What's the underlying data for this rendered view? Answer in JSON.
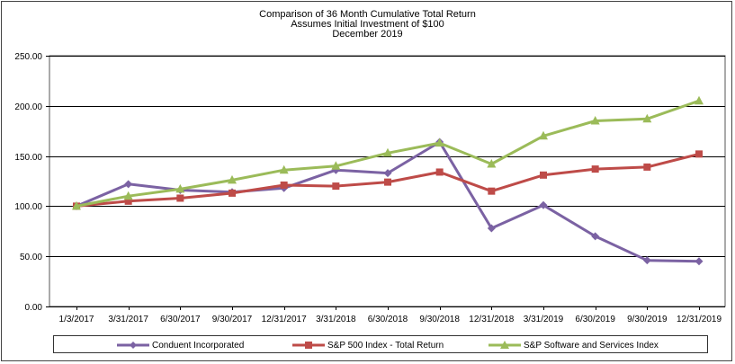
{
  "chart_data": {
    "type": "line",
    "title": "Comparison of 36 Month Cumulative Total Return",
    "subtitle": "Assumes Initial Investment of $100",
    "subtitle2": "December 2019",
    "xlabel": "",
    "ylabel": "",
    "ylim": [
      0,
      250
    ],
    "yticks": [
      "0.00",
      "50.00",
      "100.00",
      "150.00",
      "200.00",
      "250.00"
    ],
    "ytick_values": [
      0,
      50,
      100,
      150,
      200,
      250
    ],
    "grid": true,
    "legend_position": "bottom",
    "categories": [
      "1/3/2017",
      "3/31/2017",
      "6/30/2017",
      "9/30/2017",
      "12/31/2017",
      "3/31/2018",
      "6/30/2018",
      "9/30/2018",
      "12/31/2018",
      "3/31/2019",
      "6/30/2019",
      "9/30/2019",
      "12/31/2019"
    ],
    "series": [
      {
        "name": "Conduent Incorporated",
        "color": "#7b62a3",
        "marker": "diamond",
        "values": [
          100,
          122,
          116,
          114,
          118,
          136,
          133,
          164,
          78,
          101,
          70,
          46,
          45
        ]
      },
      {
        "name": "S&P 500 Index - Total Return",
        "color": "#be4b48",
        "marker": "square",
        "values": [
          100,
          105,
          108,
          113,
          121,
          120,
          124,
          134,
          115,
          131,
          137,
          139,
          152
        ]
      },
      {
        "name": "S&P Software and Services Index",
        "color": "#9bbb59",
        "marker": "triangle",
        "values": [
          100,
          110,
          117,
          126,
          136,
          140,
          153,
          163,
          142,
          170,
          185,
          187,
          205
        ]
      }
    ]
  }
}
